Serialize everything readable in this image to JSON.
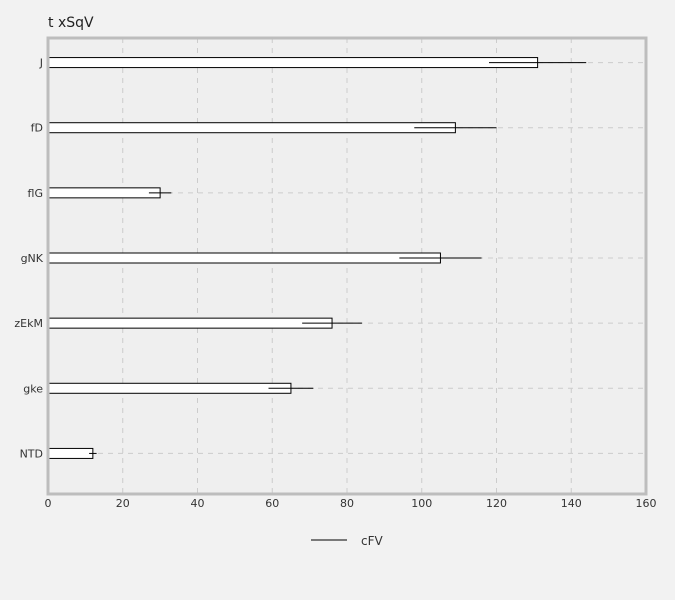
{
  "chart_data": {
    "type": "bar",
    "orientation": "horizontal",
    "title": "t xSqV",
    "xlabel": "",
    "ylabel": "",
    "categories": [
      "J",
      "fD",
      "flG",
      "gNK",
      "zEkM",
      "gke",
      "NTD"
    ],
    "series": [
      {
        "name": "cFV",
        "values": [
          131,
          109,
          30,
          105,
          76,
          65,
          12
        ],
        "error_low": [
          118,
          98,
          27,
          94,
          68,
          59,
          11
        ],
        "error_high": [
          144,
          120,
          33,
          116,
          84,
          71,
          13
        ]
      }
    ],
    "xlim": [
      0,
      160
    ],
    "xticks": [
      "0",
      "20",
      "40",
      "60",
      "80",
      "100",
      "120",
      "140",
      "160"
    ],
    "grid": true,
    "legend_position": "bottom",
    "colors": {
      "background": "#f2f2f2",
      "plot_background": "#efefef",
      "bar_fill": "#ffffff",
      "bar_stroke": "#000000",
      "grid": "#cccccc",
      "frame": "#bdbdbd"
    }
  }
}
